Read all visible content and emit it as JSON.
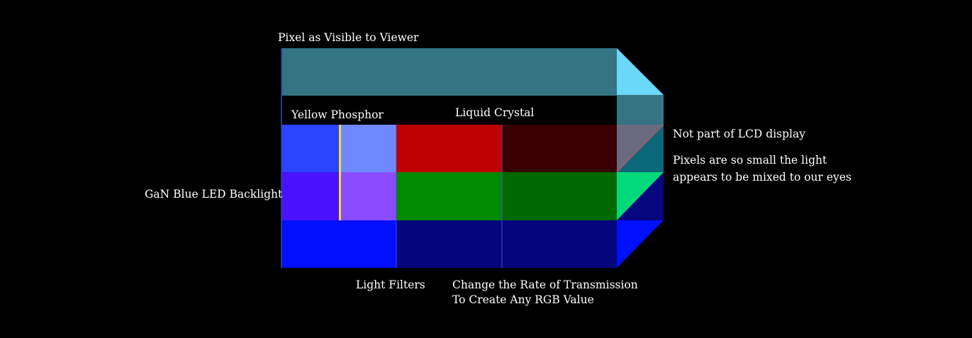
{
  "labels": {
    "pixel_viewer": "Pixel as Visible to Viewer",
    "yellow_phosphor": "Yellow Phosphor",
    "liquid_crystal": "Liquid Crystal",
    "not_part": "Not part of LCD display",
    "mixed_line1": "Pixels are so small the light",
    "mixed_line2": "appears to be mixed to our eyes",
    "backlight": "GaN Blue LED Backlight",
    "light_filters": "Light Filters",
    "change_line1": "Change the Rate of Transmission",
    "change_line2": "To Create Any RGB Value"
  },
  "colors": {
    "background": "#000000",
    "viewer_pixel": "#347483",
    "viewer_pixel_side": "#6ad8f8",
    "backlight_blue_row1": "#2a44ff",
    "backlight_violet_row2": "#4a12ff",
    "backlight_blue_row3": "#0010ff",
    "phosphor_row1": "#7088ff",
    "phosphor_row2": "#8a4cff",
    "yellow_phosphor_line": "#f4e020",
    "filter_red": "#be0000",
    "filter_green": "#008a00",
    "filter_blue": "#06067c",
    "crystal_red": "#380000",
    "crystal_green": "#006a00",
    "crystal_blue": "#06067c",
    "side_red_region": "#6a6a7e",
    "side_teal": "#0a6878",
    "side_green": "#00d87a",
    "side_navy": "#06067e",
    "side_blue": "#0010ff"
  }
}
